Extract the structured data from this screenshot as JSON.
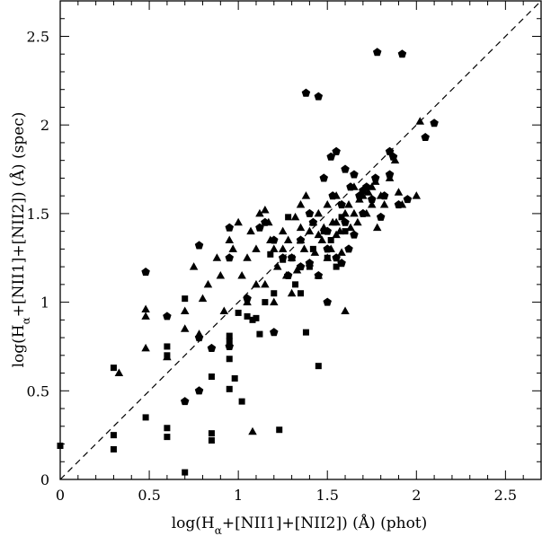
{
  "chart_data": {
    "type": "scatter",
    "xlim": [
      0,
      2.7
    ],
    "ylim": [
      0,
      2.7
    ],
    "xticks": [
      "0",
      "0.5",
      "1",
      "1.5",
      "2",
      "2.5"
    ],
    "yticks": [
      "0",
      "0.5",
      "1",
      "1.5",
      "2",
      "2.5"
    ],
    "xlabel": {
      "pre": "log(H",
      "sub": "α",
      "post": "+[NII1]+[NII2]) (Å) (phot)"
    },
    "ylabel": {
      "pre": "log(H",
      "sub": "α",
      "post": "+[NII1]+[NII2]) (Å) (spec)"
    },
    "reference_line": {
      "style": "dashed",
      "from": [
        0,
        0
      ],
      "to": [
        2.7,
        2.7
      ]
    },
    "grid": false,
    "legend": "none",
    "series": [
      {
        "marker": "square",
        "points": [
          [
            0.0,
            0.19
          ],
          [
            0.3,
            0.63
          ],
          [
            0.3,
            0.25
          ],
          [
            0.3,
            0.17
          ],
          [
            0.48,
            0.35
          ],
          [
            0.6,
            0.75
          ],
          [
            0.6,
            0.7
          ],
          [
            0.6,
            0.29
          ],
          [
            0.6,
            0.24
          ],
          [
            0.7,
            1.02
          ],
          [
            0.7,
            0.04
          ],
          [
            0.85,
            0.58
          ],
          [
            0.85,
            0.26
          ],
          [
            0.85,
            0.22
          ],
          [
            0.95,
            0.81
          ],
          [
            0.95,
            0.78
          ],
          [
            0.95,
            0.68
          ],
          [
            0.95,
            0.51
          ],
          [
            0.98,
            0.57
          ],
          [
            1.0,
            0.94
          ],
          [
            1.02,
            0.44
          ],
          [
            1.05,
            0.92
          ],
          [
            1.08,
            0.9
          ],
          [
            1.1,
            0.91
          ],
          [
            1.12,
            0.82
          ],
          [
            1.15,
            1.0
          ],
          [
            1.18,
            1.27
          ],
          [
            1.2,
            1.05
          ],
          [
            1.23,
            0.28
          ],
          [
            1.25,
            1.24
          ],
          [
            1.28,
            1.48
          ],
          [
            1.3,
            1.25
          ],
          [
            1.32,
            1.1
          ],
          [
            1.35,
            1.05
          ],
          [
            1.38,
            0.83
          ],
          [
            1.4,
            1.2
          ],
          [
            1.42,
            1.3
          ],
          [
            1.45,
            0.64
          ],
          [
            1.48,
            1.4
          ],
          [
            1.5,
            1.25
          ],
          [
            1.52,
            1.35
          ],
          [
            1.55,
            1.2
          ],
          [
            1.58,
            1.48
          ],
          [
            1.6,
            1.4
          ]
        ]
      },
      {
        "marker": "triangle",
        "points": [
          [
            0.33,
            0.6
          ],
          [
            0.48,
            0.96
          ],
          [
            0.48,
            0.92
          ],
          [
            0.48,
            0.74
          ],
          [
            0.6,
            0.69
          ],
          [
            0.7,
            0.95
          ],
          [
            0.7,
            0.85
          ],
          [
            0.75,
            1.2
          ],
          [
            0.78,
            0.82
          ],
          [
            0.8,
            1.02
          ],
          [
            0.83,
            1.1
          ],
          [
            0.88,
            1.25
          ],
          [
            0.9,
            1.15
          ],
          [
            0.92,
            0.95
          ],
          [
            0.95,
            1.35
          ],
          [
            0.97,
            1.3
          ],
          [
            1.0,
            1.45
          ],
          [
            1.02,
            1.15
          ],
          [
            1.05,
            1.25
          ],
          [
            1.05,
            1.0
          ],
          [
            1.07,
            1.4
          ],
          [
            1.08,
            0.27
          ],
          [
            1.1,
            1.3
          ],
          [
            1.1,
            1.1
          ],
          [
            1.12,
            1.5
          ],
          [
            1.15,
            1.1
          ],
          [
            1.17,
            1.45
          ],
          [
            1.18,
            1.35
          ],
          [
            1.2,
            1.0
          ],
          [
            1.2,
            1.3
          ],
          [
            1.22,
            1.2
          ],
          [
            1.25,
            1.4
          ],
          [
            1.27,
            1.15
          ],
          [
            1.28,
            1.35
          ],
          [
            1.3,
            1.05
          ],
          [
            1.3,
            1.25
          ],
          [
            1.32,
            1.48
          ],
          [
            1.33,
            1.18
          ],
          [
            1.35,
            1.55
          ],
          [
            1.35,
            1.35
          ],
          [
            1.37,
            1.3
          ],
          [
            1.38,
            1.6
          ],
          [
            1.4,
            1.22
          ],
          [
            1.4,
            1.4
          ],
          [
            1.42,
            1.45
          ],
          [
            1.43,
            1.28
          ],
          [
            1.45,
            1.15
          ],
          [
            1.45,
            1.5
          ],
          [
            1.47,
            1.35
          ],
          [
            1.48,
            1.42
          ],
          [
            1.5,
            1.25
          ],
          [
            1.5,
            1.55
          ],
          [
            1.52,
            1.3
          ],
          [
            1.53,
            1.45
          ],
          [
            1.55,
            1.6
          ],
          [
            1.55,
            1.38
          ],
          [
            1.57,
            1.4
          ],
          [
            1.58,
            1.28
          ],
          [
            1.6,
            1.5
          ],
          [
            1.6,
            0.95
          ],
          [
            1.62,
            1.55
          ],
          [
            1.63,
            1.42
          ],
          [
            1.65,
            1.65
          ],
          [
            1.67,
            1.45
          ],
          [
            1.68,
            1.58
          ],
          [
            1.7,
            1.6
          ],
          [
            1.72,
            1.5
          ],
          [
            1.73,
            1.62
          ],
          [
            1.75,
            1.55
          ],
          [
            1.77,
            1.68
          ],
          [
            1.78,
            1.42
          ],
          [
            1.8,
            1.6
          ],
          [
            1.82,
            1.55
          ],
          [
            1.85,
            1.7
          ],
          [
            1.88,
            1.8
          ],
          [
            1.9,
            1.62
          ],
          [
            1.92,
            1.55
          ],
          [
            2.0,
            1.6
          ],
          [
            2.02,
            2.02
          ],
          [
            1.15,
            1.52
          ],
          [
            1.25,
            1.3
          ],
          [
            1.35,
            1.42
          ],
          [
            1.45,
            1.38
          ],
          [
            1.55,
            1.45
          ],
          [
            1.65,
            1.5
          ],
          [
            1.75,
            1.65
          ]
        ]
      },
      {
        "marker": "pentagon",
        "points": [
          [
            0.48,
            1.17
          ],
          [
            0.6,
            0.92
          ],
          [
            0.7,
            0.44
          ],
          [
            0.78,
            0.5
          ],
          [
            0.78,
            0.8
          ],
          [
            0.78,
            1.32
          ],
          [
            0.85,
            0.74
          ],
          [
            0.95,
            1.42
          ],
          [
            0.95,
            1.25
          ],
          [
            0.95,
            0.75
          ],
          [
            1.05,
            1.02
          ],
          [
            1.12,
            1.42
          ],
          [
            1.15,
            1.45
          ],
          [
            1.2,
            0.83
          ],
          [
            1.2,
            1.35
          ],
          [
            1.25,
            1.25
          ],
          [
            1.3,
            1.25
          ],
          [
            1.35,
            1.2
          ],
          [
            1.35,
            1.35
          ],
          [
            1.38,
            2.18
          ],
          [
            1.4,
            1.22
          ],
          [
            1.42,
            1.45
          ],
          [
            1.45,
            2.16
          ],
          [
            1.45,
            1.15
          ],
          [
            1.48,
            1.7
          ],
          [
            1.5,
            1.3
          ],
          [
            1.5,
            1.4
          ],
          [
            1.52,
            1.82
          ],
          [
            1.53,
            1.6
          ],
          [
            1.55,
            1.85
          ],
          [
            1.55,
            1.25
          ],
          [
            1.58,
            1.55
          ],
          [
            1.6,
            1.75
          ],
          [
            1.6,
            1.45
          ],
          [
            1.62,
            1.3
          ],
          [
            1.63,
            1.65
          ],
          [
            1.65,
            1.72
          ],
          [
            1.65,
            1.38
          ],
          [
            1.68,
            1.6
          ],
          [
            1.7,
            1.5
          ],
          [
            1.72,
            1.65
          ],
          [
            1.75,
            1.58
          ],
          [
            1.77,
            1.7
          ],
          [
            1.78,
            2.41
          ],
          [
            1.8,
            1.48
          ],
          [
            1.82,
            1.6
          ],
          [
            1.85,
            1.72
          ],
          [
            1.87,
            1.82
          ],
          [
            1.9,
            1.55
          ],
          [
            1.92,
            2.4
          ],
          [
            1.95,
            1.58
          ],
          [
            2.05,
            1.93
          ],
          [
            2.1,
            2.01
          ],
          [
            1.28,
            1.15
          ],
          [
            1.4,
            1.5
          ],
          [
            1.5,
            1.0
          ],
          [
            1.58,
            1.22
          ],
          [
            1.7,
            1.63
          ],
          [
            1.85,
            1.85
          ]
        ]
      }
    ]
  }
}
